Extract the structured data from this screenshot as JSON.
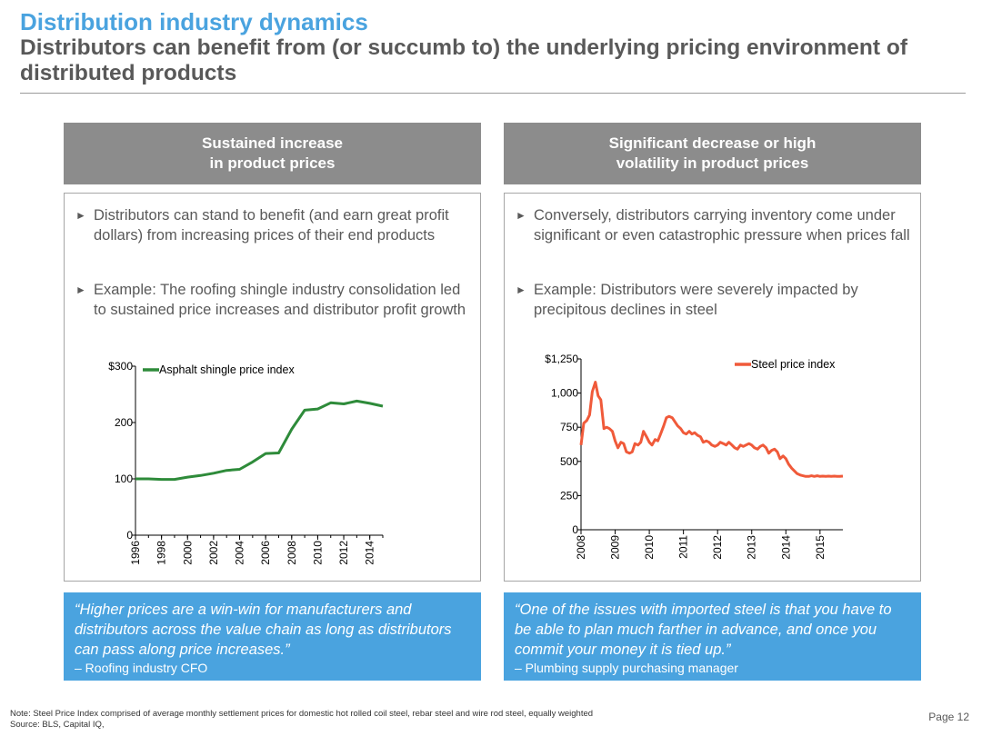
{
  "header": {
    "title": "Distribution industry dynamics",
    "subtitle": "Distributors can benefit from (or succumb to) the underlying pricing environment of distributed products"
  },
  "left": {
    "header_line1": "Sustained increase",
    "header_line2": "in product prices",
    "bullets": [
      "Distributors can stand to benefit (and earn great profit dollars) from increasing prices of their end products",
      "Example: The roofing shingle industry consolidation led to sustained price increases and distributor profit growth"
    ],
    "quote": "“Higher prices are a win-win for manufacturers and distributors across the value chain as long as distributors can pass along price increases.”",
    "attribution": "– Roofing industry CFO"
  },
  "right": {
    "header_line1": "Significant decrease or high",
    "header_line2": "volatility in product prices",
    "bullets": [
      "Conversely, distributors carrying inventory come under significant or even catastrophic pressure when prices fall",
      "Example: Distributors were severely impacted by precipitous declines in steel"
    ],
    "quote": "“One of the issues with imported steel is that you have to be able to plan much farther in advance, and once you commit your money it is tied up.”",
    "attribution": "– Plumbing supply purchasing manager"
  },
  "footer": {
    "note": "Note: Steel Price Index comprised of average monthly settlement prices for domestic hot rolled coil steel, rebar steel and wire rod steel, equally weighted",
    "source": "Source: BLS, Capital IQ,",
    "page": "Page 12"
  },
  "colors": {
    "accent_blue": "#4aa3df",
    "header_gray": "#8c8c8c",
    "asphalt_line": "#2e8b3a",
    "steel_line": "#f05a3a"
  },
  "icons": {
    "bullet": "triangle-right-icon"
  },
  "chart_data": [
    {
      "type": "line",
      "legend_position": "top-left",
      "ylim": [
        0,
        300
      ],
      "yticks": [
        0,
        100,
        200,
        300
      ],
      "ytick_labels": [
        "0",
        "100",
        "200",
        "$300"
      ],
      "xlim": [
        1996,
        2015
      ],
      "xtick_labels": [
        "1996",
        "1998",
        "2000",
        "2002",
        "2004",
        "2006",
        "2008",
        "2010",
        "2012",
        "2014"
      ],
      "series": [
        {
          "name": "Asphalt shingle price index",
          "color": "#2e8b3a",
          "x": [
            1996,
            1997,
            1998,
            1999,
            2000,
            2001,
            2002,
            2003,
            2004,
            2005,
            2006,
            2007,
            2008,
            2009,
            2010,
            2011,
            2012,
            2013,
            2014,
            2015
          ],
          "y": [
            100,
            100,
            99,
            99,
            103,
            106,
            110,
            115,
            117,
            130,
            145,
            146,
            188,
            222,
            224,
            235,
            233,
            238,
            234,
            229
          ]
        }
      ]
    },
    {
      "type": "line",
      "legend_position": "top-right",
      "ylim": [
        0,
        1250
      ],
      "yticks": [
        0,
        250,
        500,
        750,
        1000,
        1250
      ],
      "ytick_labels": [
        "0",
        "250",
        "500",
        "750",
        "1,000",
        "$1,250"
      ],
      "xlim": [
        2008.0,
        2015.67
      ],
      "xtick_labels": [
        "2008",
        "2009",
        "2010",
        "2011",
        "2012",
        "2013",
        "2014",
        "2015"
      ],
      "series": [
        {
          "name": "Steel price index",
          "color": "#f05a3a",
          "x": [
            2008.0,
            2008.08,
            2008.17,
            2008.25,
            2008.33,
            2008.42,
            2008.5,
            2008.58,
            2008.67,
            2008.75,
            2008.83,
            2008.92,
            2009.0,
            2009.08,
            2009.17,
            2009.25,
            2009.33,
            2009.42,
            2009.5,
            2009.58,
            2009.67,
            2009.75,
            2009.83,
            2009.92,
            2010.0,
            2010.08,
            2010.17,
            2010.25,
            2010.33,
            2010.42,
            2010.5,
            2010.58,
            2010.67,
            2010.75,
            2010.83,
            2010.92,
            2011.0,
            2011.08,
            2011.17,
            2011.25,
            2011.33,
            2011.42,
            2011.5,
            2011.58,
            2011.67,
            2011.75,
            2011.83,
            2011.92,
            2012.0,
            2012.08,
            2012.17,
            2012.25,
            2012.33,
            2012.42,
            2012.5,
            2012.58,
            2012.67,
            2012.75,
            2012.83,
            2012.92,
            2013.0,
            2013.08,
            2013.17,
            2013.25,
            2013.33,
            2013.42,
            2013.5,
            2013.58,
            2013.67,
            2013.75,
            2013.83,
            2013.92,
            2014.0,
            2014.08,
            2014.17,
            2014.25,
            2014.33,
            2014.42,
            2014.5,
            2014.58,
            2014.67,
            2014.75,
            2014.83,
            2014.92,
            2015.0,
            2015.08,
            2015.17,
            2015.25,
            2015.33,
            2015.42,
            2015.5,
            2015.58,
            2015.67
          ],
          "y": [
            620,
            780,
            800,
            840,
            1010,
            1080,
            980,
            950,
            740,
            750,
            740,
            720,
            650,
            600,
            640,
            630,
            570,
            560,
            570,
            630,
            620,
            640,
            720,
            680,
            640,
            620,
            660,
            650,
            700,
            760,
            820,
            830,
            820,
            790,
            760,
            740,
            710,
            700,
            720,
            700,
            710,
            690,
            680,
            640,
            650,
            640,
            620,
            610,
            620,
            640,
            630,
            620,
            640,
            620,
            600,
            590,
            620,
            610,
            620,
            630,
            620,
            600,
            590,
            610,
            620,
            600,
            560,
            580,
            590,
            570,
            520,
            540,
            520,
            480,
            450,
            430,
            410,
            400,
            395,
            390,
            390,
            395,
            390,
            395,
            390,
            392,
            390,
            392,
            390,
            392,
            390,
            390,
            392
          ]
        }
      ]
    }
  ]
}
